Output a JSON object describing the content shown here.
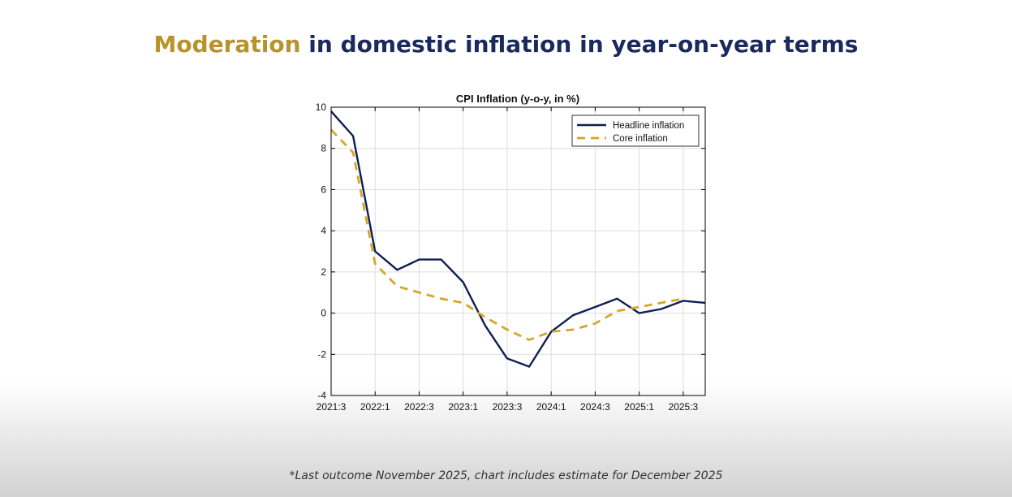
{
  "slide": {
    "title_accent": "Moderation",
    "title_rest": " in domestic inflation in year-on-year terms",
    "footnote": "*Last outcome November 2025, chart includes estimate for December 2025"
  },
  "colors": {
    "title_accent": "#b8922a",
    "title_rest": "#1b2a5c",
    "headline": "#0f1f55",
    "core": "#d4a62a"
  },
  "chart_data": {
    "type": "line",
    "title": "CPI Inflation (y-o-y, in %)",
    "xlabel": "",
    "ylabel": "",
    "x_ticks": [
      "2021:3",
      "2022:1",
      "2022:3",
      "2023:1",
      "2023:3",
      "2024:1",
      "2024:3",
      "2025:1",
      "2025:3"
    ],
    "x": [
      "2021:3",
      "2021:4",
      "2022:1",
      "2022:2",
      "2022:3",
      "2022:4",
      "2023:1",
      "2023:2",
      "2023:3",
      "2023:4",
      "2024:1",
      "2024:2",
      "2024:3",
      "2024:4",
      "2025:1",
      "2025:2",
      "2025:3",
      "2025:4"
    ],
    "ylim": [
      -4,
      10
    ],
    "y_ticks": [
      -4,
      -2,
      0,
      2,
      4,
      6,
      8,
      10
    ],
    "grid": true,
    "legend_position": "top-right",
    "series": [
      {
        "name": "Headline inflation",
        "style": "solid",
        "values": [
          9.8,
          8.6,
          3.0,
          2.1,
          2.6,
          2.6,
          1.5,
          -0.6,
          -2.2,
          -2.6,
          -0.9,
          -0.1,
          0.3,
          0.7,
          0.0,
          0.2,
          0.6,
          0.5
        ]
      },
      {
        "name": "Core inflation",
        "style": "dashed",
        "values": [
          8.9,
          7.8,
          2.4,
          1.3,
          1.0,
          0.7,
          0.5,
          -0.2,
          -0.8,
          -1.3,
          -0.9,
          -0.8,
          -0.5,
          0.1,
          0.3,
          0.5,
          0.7,
          null
        ]
      }
    ]
  }
}
